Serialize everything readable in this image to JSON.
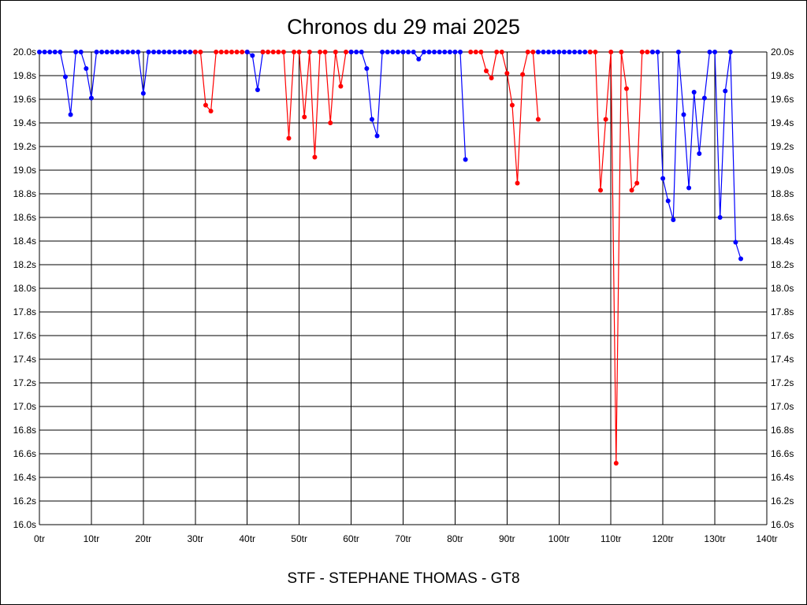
{
  "chart_data": {
    "type": "line",
    "title": "Chronos du 29 mai 2025",
    "footer": "STF - STEPHANE THOMAS - GT8",
    "xlabel": "",
    "ylabel": "",
    "xlim": [
      0,
      140
    ],
    "ylim": [
      16.0,
      20.0
    ],
    "x_ticks": [
      0,
      10,
      20,
      30,
      40,
      50,
      60,
      70,
      80,
      90,
      100,
      110,
      120,
      130,
      140
    ],
    "x_tick_labels": [
      "0tr",
      "10tr",
      "20tr",
      "30tr",
      "40tr",
      "50tr",
      "60tr",
      "70tr",
      "80tr",
      "90tr",
      "100tr",
      "110tr",
      "120tr",
      "130tr",
      "140tr"
    ],
    "y_ticks": [
      16.0,
      16.2,
      16.4,
      16.6,
      16.8,
      17.0,
      17.2,
      17.4,
      17.6,
      17.8,
      18.0,
      18.2,
      18.4,
      18.6,
      18.8,
      19.0,
      19.2,
      19.4,
      19.6,
      19.8,
      20.0
    ],
    "y_tick_labels": [
      "16.0s",
      "16.2s",
      "16.4s",
      "16.6s",
      "16.8s",
      "17.0s",
      "17.2s",
      "17.4s",
      "17.6s",
      "17.8s",
      "18.0s",
      "18.2s",
      "18.4s",
      "18.6s",
      "18.8s",
      "19.0s",
      "19.2s",
      "19.4s",
      "19.6s",
      "19.8s",
      "20.0s"
    ],
    "y_axis_right_labels": true,
    "grid": true,
    "colors": {
      "blue": "#0000ff",
      "red": "#ff0000",
      "grid": "#000000"
    },
    "series": [
      {
        "color": "blue",
        "x": [
          0,
          1,
          2,
          3,
          4,
          5,
          6,
          7,
          8,
          9,
          10,
          11,
          12,
          13,
          14,
          15,
          16,
          17,
          18,
          19,
          20,
          21,
          22,
          23,
          24,
          25,
          26,
          27,
          28,
          29,
          30
        ],
        "y": [
          20.0,
          20.0,
          20.0,
          20.0,
          20.0,
          19.79,
          19.47,
          20.0,
          20.0,
          19.86,
          19.61,
          20.0,
          20.0,
          20.0,
          20.0,
          20.0,
          20.0,
          20.0,
          20.0,
          20.0,
          19.65,
          20.0,
          20.0,
          20.0,
          20.0,
          20.0,
          20.0,
          20.0,
          20.0,
          20.0,
          20.0
        ]
      },
      {
        "color": "red",
        "x": [
          30,
          31,
          32,
          33,
          34,
          35,
          36,
          37,
          38,
          39,
          40
        ],
        "y": [
          20.0,
          20.0,
          19.55,
          19.5,
          20.0,
          20.0,
          20.0,
          20.0,
          20.0,
          20.0,
          20.0
        ]
      },
      {
        "color": "blue",
        "x": [
          40,
          41,
          42,
          43
        ],
        "y": [
          20.0,
          19.97,
          19.68,
          20.0
        ]
      },
      {
        "color": "red",
        "x": [
          43,
          44,
          45,
          46,
          47,
          48,
          49,
          50,
          51,
          52,
          53,
          54,
          55,
          56,
          57,
          58,
          59,
          60
        ],
        "y": [
          20.0,
          20.0,
          20.0,
          20.0,
          20.0,
          19.27,
          20.0,
          20.0,
          19.45,
          20.0,
          19.11,
          20.0,
          20.0,
          19.4,
          20.0,
          19.71,
          20.0,
          20.0
        ]
      },
      {
        "color": "blue",
        "x": [
          60,
          61,
          62,
          63,
          64,
          65,
          66,
          67,
          68,
          69,
          70,
          71,
          72,
          73,
          74,
          75,
          76,
          77,
          78,
          79,
          80,
          81,
          82
        ],
        "y": [
          20.0,
          20.0,
          20.0,
          19.86,
          19.43,
          19.29,
          20.0,
          20.0,
          20.0,
          20.0,
          20.0,
          20.0,
          20.0,
          19.94,
          20.0,
          20.0,
          20.0,
          20.0,
          20.0,
          20.0,
          20.0,
          20.0,
          19.09
        ]
      },
      {
        "color": "red",
        "x": [
          83,
          84,
          85,
          86,
          87,
          88,
          89,
          90,
          91,
          92,
          93,
          94,
          95,
          96
        ],
        "y": [
          20.0,
          20.0,
          20.0,
          19.84,
          19.78,
          20.0,
          20.0,
          19.82,
          19.55,
          18.89,
          19.81,
          20.0,
          20.0,
          19.43
        ]
      },
      {
        "color": "blue",
        "x": [
          96,
          97,
          98,
          99,
          100,
          101,
          102,
          103,
          104,
          105,
          106
        ],
        "y": [
          20.0,
          20.0,
          20.0,
          20.0,
          20.0,
          20.0,
          20.0,
          20.0,
          20.0,
          20.0,
          20.0
        ]
      },
      {
        "color": "red",
        "x": [
          106,
          107,
          108,
          109,
          110,
          111,
          112,
          113,
          114,
          115,
          116,
          117,
          118
        ],
        "y": [
          20.0,
          20.0,
          18.83,
          19.43,
          20.0,
          16.52,
          20.0,
          19.69,
          18.83,
          18.89,
          20.0,
          20.0,
          20.0
        ]
      },
      {
        "color": "blue",
        "x": [
          118,
          119,
          120,
          121,
          122,
          123,
          124,
          125,
          126,
          127,
          128,
          129,
          130,
          131,
          132,
          133,
          134,
          135
        ],
        "y": [
          20.0,
          20.0,
          18.93,
          18.74,
          18.58,
          20.0,
          19.47,
          18.85,
          19.66,
          19.14,
          19.61,
          20.0,
          20.0,
          18.6,
          19.67,
          20.0,
          18.39,
          18.25
        ]
      }
    ]
  }
}
